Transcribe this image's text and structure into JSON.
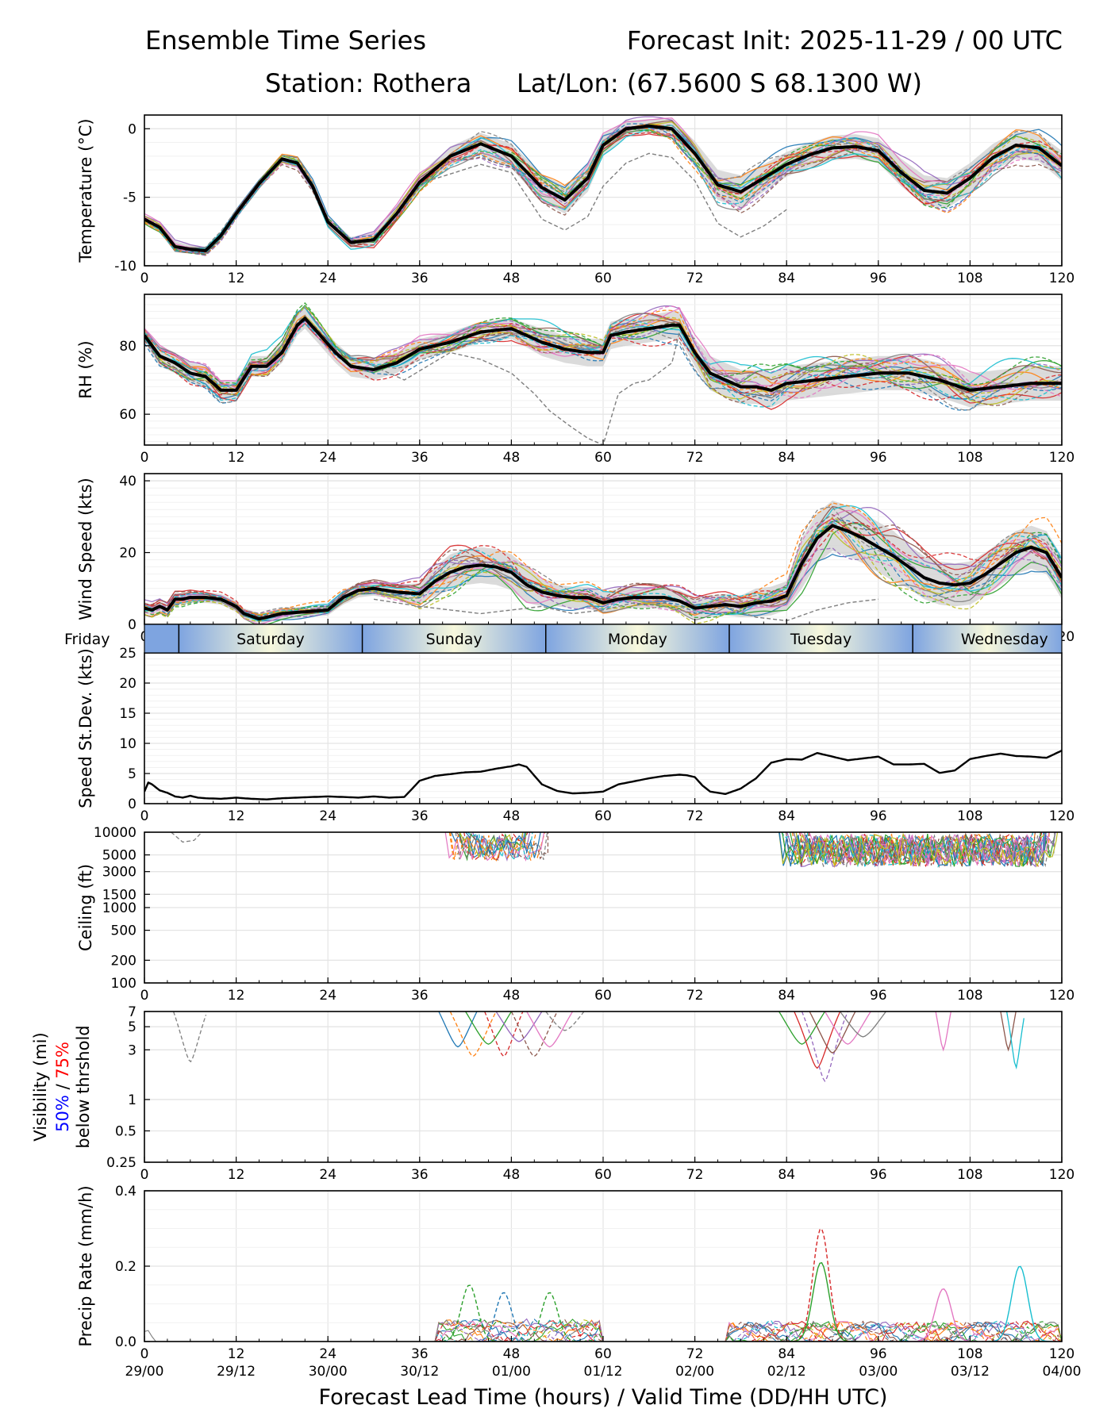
{
  "header": {
    "title": "Ensemble Time Series",
    "init": "Forecast Init: 2025-11-29 / 00 UTC",
    "station": "Station: Rothera",
    "latlon": "Lat/Lon: (67.5600 S 68.1300 W)"
  },
  "colors": {
    "members": [
      "#1f77b4",
      "#ff7f0e",
      "#2ca02c",
      "#d62728",
      "#9467bd",
      "#8c564b",
      "#e377c2",
      "#7f7f7f",
      "#bcbd22",
      "#17becf"
    ],
    "mean": "#000000",
    "spread": "#cfcfcf",
    "grid": "#e4e4e4",
    "vis_50": "#0000ff",
    "vis_75": "#ff0000",
    "day_band_dark": "#7ea4e0",
    "day_band_light": "#f7f8dc"
  },
  "chart_data": [
    {
      "id": "temperature",
      "type": "line",
      "ylabel": "Temperature (°C)",
      "ylim": [
        -10,
        1
      ],
      "yticks": [
        0,
        -5,
        -10
      ],
      "scale": "linear",
      "xlim": [
        0,
        120
      ],
      "xticks": [
        0,
        12,
        24,
        36,
        48,
        60,
        72,
        84,
        96,
        108,
        120
      ],
      "mean": {
        "x": [
          0,
          2,
          4,
          6,
          8,
          10,
          12,
          15,
          18,
          20,
          22,
          24,
          27,
          30,
          33,
          36,
          40,
          44,
          48,
          52,
          55,
          58,
          60,
          63,
          66,
          69,
          72,
          75,
          78,
          81,
          84,
          87,
          90,
          93,
          96,
          99,
          102,
          105,
          108,
          111,
          114,
          117,
          120
        ],
        "y": [
          -6.6,
          -7.2,
          -8.6,
          -8.8,
          -8.9,
          -7.8,
          -6.2,
          -4.0,
          -2.2,
          -2.5,
          -4.2,
          -6.8,
          -8.3,
          -8.1,
          -6.2,
          -3.9,
          -2.0,
          -1.1,
          -2.0,
          -4.3,
          -5.2,
          -3.6,
          -1.2,
          0.0,
          0.2,
          0.0,
          -1.8,
          -4.1,
          -4.6,
          -3.6,
          -2.6,
          -1.9,
          -1.4,
          -1.3,
          -1.6,
          -3.2,
          -4.5,
          -4.7,
          -3.6,
          -2.1,
          -1.2,
          -1.4,
          -2.7
        ]
      },
      "spread": [
        0.3,
        0.4,
        0.4,
        0.3,
        0.3,
        0.3,
        0.3,
        0.3,
        0.3,
        0.4,
        0.4,
        0.4,
        0.4,
        0.5,
        0.5,
        0.6,
        0.7,
        0.8,
        0.9,
        1.0,
        1.0,
        1.0,
        0.8,
        0.6,
        0.5,
        0.7,
        0.9,
        1.1,
        1.2,
        1.0,
        0.9,
        0.9,
        0.9,
        0.9,
        0.9,
        1.0,
        1.1,
        1.1,
        1.1,
        1.0,
        1.0,
        1.0,
        1.1
      ],
      "outlier": {
        "x": [
          36,
          44,
          48,
          52,
          55,
          58,
          60,
          63,
          66,
          69,
          72,
          75,
          78,
          81,
          84
        ],
        "y": [
          -4.0,
          -2.6,
          -3.2,
          -6.6,
          -7.4,
          -6.4,
          -4.2,
          -2.5,
          -1.8,
          -2.1,
          -3.8,
          -6.9,
          -7.9,
          -7.1,
          -5.9
        ]
      }
    },
    {
      "id": "rh",
      "type": "line",
      "ylabel": "RH (%)",
      "ylim": [
        51,
        95
      ],
      "yticks": [
        60,
        80
      ],
      "scale": "linear",
      "xlim": [
        0,
        120
      ],
      "xticks": [
        0,
        12,
        24,
        36,
        48,
        60,
        72,
        84,
        96,
        108,
        120
      ],
      "mean": {
        "x": [
          0,
          2,
          4,
          6,
          8,
          10,
          12,
          14,
          16,
          18,
          20,
          21,
          23,
          25,
          27,
          30,
          33,
          36,
          40,
          44,
          48,
          52,
          55,
          58,
          60,
          61,
          63,
          66,
          69,
          70,
          72,
          74,
          76,
          78,
          80,
          82,
          84,
          88,
          92,
          96,
          100,
          104,
          108,
          112,
          116,
          120
        ],
        "y": [
          83,
          77,
          75,
          72,
          71,
          67,
          67,
          74,
          74,
          78,
          86,
          88,
          83,
          78,
          74,
          73,
          75,
          79,
          81,
          84,
          85,
          81,
          79,
          78,
          78,
          83,
          84,
          85,
          86,
          86,
          78,
          72,
          70,
          68,
          68,
          67,
          69,
          70,
          71,
          72,
          72,
          70,
          67,
          68,
          69,
          69
        ]
      },
      "spread": [
        2,
        3,
        3,
        3,
        3,
        3,
        3,
        3,
        3,
        3,
        3,
        3,
        3,
        3,
        3,
        3,
        3,
        3,
        3,
        3,
        3,
        4,
        4,
        4,
        4,
        4,
        4,
        4,
        4,
        4,
        4,
        5,
        5,
        5,
        5,
        5,
        5,
        5,
        5,
        5,
        5,
        5,
        5,
        5,
        5,
        5
      ],
      "outlier": {
        "x": [
          30,
          34,
          37,
          40,
          44,
          48,
          51,
          53,
          56,
          58,
          60,
          62,
          64,
          66,
          69,
          70,
          72
        ],
        "y": [
          74,
          70,
          74,
          78,
          76,
          72,
          66,
          61,
          56,
          53,
          51,
          66,
          69,
          70,
          75,
          84,
          82
        ]
      }
    },
    {
      "id": "wind",
      "type": "line",
      "ylabel": "Wind Speed (kts)",
      "ylim": [
        0,
        42
      ],
      "yticks": [
        0,
        20,
        40
      ],
      "scale": "linear",
      "xlim": [
        0,
        120
      ],
      "xticks": [
        0,
        12,
        24,
        36,
        48,
        60,
        72,
        84,
        96,
        108,
        120
      ],
      "mean": {
        "x": [
          0,
          1,
          2,
          3,
          4,
          5,
          6,
          8,
          10,
          12,
          13,
          15,
          18,
          21,
          24,
          26,
          28,
          30,
          33,
          36,
          38,
          40,
          42,
          44,
          46,
          48,
          50,
          52,
          54,
          56,
          58,
          60,
          62,
          64,
          66,
          68,
          70,
          72,
          74,
          76,
          78,
          80,
          82,
          84,
          86,
          88,
          90,
          92,
          94,
          96,
          98,
          100,
          102,
          104,
          106,
          108,
          110,
          112,
          114,
          116,
          118,
          120
        ],
        "y": [
          4.5,
          4.0,
          5.0,
          4.0,
          7.0,
          7.0,
          7.5,
          7.5,
          7.0,
          5.0,
          3.0,
          1.5,
          3.0,
          3.5,
          4.0,
          7.5,
          9.5,
          10.0,
          9.0,
          8.5,
          12.0,
          14.5,
          16.0,
          16.5,
          16.0,
          14.5,
          11.0,
          9.0,
          8.0,
          7.5,
          7.5,
          6.0,
          7.0,
          7.5,
          7.5,
          7.5,
          6.5,
          4.5,
          5.0,
          5.5,
          5.0,
          6.0,
          6.5,
          8.0,
          17.0,
          24.0,
          27.5,
          26.0,
          24.0,
          21.5,
          19.0,
          16.0,
          13.0,
          11.5,
          11.0,
          11.5,
          14.0,
          17.0,
          20.0,
          21.5,
          20.0,
          13.0
        ]
      },
      "spread": [
        1.5,
        1.5,
        1.5,
        1.5,
        1.5,
        1.5,
        1.5,
        1.5,
        1.5,
        1.5,
        1.5,
        1.5,
        1.5,
        1.5,
        1.5,
        2,
        2,
        2,
        2,
        3,
        4,
        5,
        5,
        5,
        5,
        5,
        5,
        4,
        3,
        3,
        3,
        3,
        3,
        3,
        3,
        3,
        3,
        3,
        3,
        3,
        3,
        4,
        4,
        4,
        7,
        7,
        7,
        7,
        7,
        7,
        7,
        6,
        6,
        6,
        6,
        6,
        6,
        6,
        6,
        6,
        6,
        6
      ],
      "outlier": {
        "x": [
          30,
          36,
          40,
          44,
          48,
          52,
          56,
          60,
          64,
          68,
          72,
          76,
          80,
          84,
          88,
          92,
          96
        ],
        "y": [
          7,
          5,
          4,
          3,
          4,
          5,
          3,
          4,
          6,
          5,
          3,
          5,
          2,
          1,
          4,
          6,
          7
        ]
      }
    },
    {
      "id": "sd",
      "type": "line",
      "ylabel": "Speed St.Dev. (kts)",
      "ylim": [
        0,
        25
      ],
      "yticks": [
        0,
        5,
        10,
        15,
        20,
        25
      ],
      "scale": "linear",
      "xlim": [
        0,
        120
      ],
      "xticks": [
        0,
        12,
        24,
        36,
        48,
        60,
        72,
        84,
        96,
        108,
        120
      ],
      "mean": {
        "x": [
          0,
          0.5,
          1,
          2,
          3,
          4,
          5,
          6,
          7,
          8,
          10,
          12,
          14,
          16,
          18,
          20,
          22,
          24,
          26,
          28,
          30,
          32,
          34,
          36,
          38,
          40,
          42,
          44,
          46,
          48,
          49,
          50,
          52,
          54,
          56,
          58,
          60,
          62,
          64,
          66,
          68,
          70,
          71,
          72,
          73,
          74,
          76,
          78,
          80,
          82,
          84,
          86,
          88,
          90,
          92,
          94,
          96,
          98,
          100,
          102,
          104,
          106,
          108,
          110,
          112,
          114,
          116,
          118,
          120
        ],
        "y": [
          2.0,
          3.5,
          3.2,
          2.2,
          1.8,
          1.2,
          1.0,
          1.3,
          1.0,
          0.9,
          0.8,
          1.0,
          0.8,
          0.7,
          0.9,
          1.0,
          1.1,
          1.2,
          1.1,
          1.0,
          1.2,
          1.0,
          1.1,
          3.8,
          4.6,
          4.9,
          5.2,
          5.3,
          5.8,
          6.2,
          6.5,
          6.1,
          3.2,
          2.1,
          1.7,
          1.8,
          2.0,
          3.2,
          3.7,
          4.2,
          4.6,
          4.8,
          4.7,
          4.4,
          3.0,
          2.0,
          1.6,
          2.5,
          4.2,
          6.8,
          7.4,
          7.3,
          8.4,
          7.8,
          7.2,
          7.5,
          7.8,
          6.5,
          6.5,
          6.6,
          5.1,
          5.5,
          7.4,
          7.9,
          8.3,
          7.9,
          7.8,
          7.6,
          8.8
        ]
      }
    },
    {
      "id": "ceiling",
      "type": "line",
      "ylabel": "Ceiling (ft)",
      "ylim": [
        100,
        10000
      ],
      "scale": "log",
      "yticks": [
        100,
        200,
        500,
        1000,
        1500,
        3000,
        5000,
        10000
      ],
      "ytick_labels": [
        "100",
        "200",
        "500",
        "1000",
        "1500",
        "3000",
        "5000",
        "10000"
      ],
      "xlim": [
        0,
        120
      ],
      "xticks": [
        0,
        12,
        24,
        36,
        48,
        60,
        72,
        84,
        96,
        108,
        120
      ]
    },
    {
      "id": "visibility",
      "type": "line",
      "ylabel": "Visibility (mi)",
      "ylabel_50": "50%",
      "ylabel_sep": "/",
      "ylabel_75": "75%",
      "ylabel_below": "below thrshold",
      "ylim": [
        0.25,
        7
      ],
      "scale": "log",
      "yticks": [
        0.25,
        0.5,
        1,
        3,
        5,
        7
      ],
      "ytick_labels": [
        "0.25",
        "0.5",
        "1",
        "3",
        "5",
        "7"
      ],
      "xlim": [
        0,
        120
      ],
      "xticks": [
        0,
        12,
        24,
        36,
        48,
        60,
        72,
        84,
        96,
        108,
        120
      ]
    },
    {
      "id": "precip",
      "type": "line",
      "ylabel": "Precip Rate (mm/h)",
      "ylim": [
        0,
        0.4
      ],
      "yticks": [
        0.0,
        0.2,
        0.4
      ],
      "ytick_labels": [
        "0.0",
        "0.2",
        "0.4"
      ],
      "scale": "linear",
      "xlim": [
        0,
        120
      ],
      "xticks": [
        0,
        12,
        24,
        36,
        48,
        60,
        72,
        84,
        96,
        108,
        120
      ],
      "xtick_dates": [
        "29/00",
        "29/12",
        "30/00",
        "30/12",
        "01/00",
        "01/12",
        "02/00",
        "02/12",
        "03/00",
        "03/12",
        "04/00"
      ],
      "xlabel": "Forecast Lead Time (hours) / Valid Time (DD/HH UTC)",
      "peaks": [
        {
          "x": 88.5,
          "y": 0.3,
          "color": 3,
          "dash": true
        },
        {
          "x": 88.5,
          "y": 0.21,
          "color": 2,
          "dash": false
        },
        {
          "x": 114.5,
          "y": 0.2,
          "color": 9,
          "dash": false
        },
        {
          "x": 104.5,
          "y": 0.14,
          "color": 6,
          "dash": false
        },
        {
          "x": 42.5,
          "y": 0.15,
          "color": 2,
          "dash": true
        },
        {
          "x": 53,
          "y": 0.13,
          "color": 2,
          "dash": true
        },
        {
          "x": 47,
          "y": 0.13,
          "color": 0,
          "dash": true
        }
      ]
    }
  ],
  "days": {
    "boundaries": [
      4.5,
      28.5,
      52.5,
      76.5,
      100.5
    ],
    "labels": [
      {
        "text": "Friday",
        "x": -7.5
      },
      {
        "text": "Saturday",
        "x": 16.5
      },
      {
        "text": "Sunday",
        "x": 40.5
      },
      {
        "text": "Monday",
        "x": 64.5
      },
      {
        "text": "Tuesday",
        "x": 88.5
      },
      {
        "text": "Wednesday",
        "x": 112.5
      }
    ]
  }
}
